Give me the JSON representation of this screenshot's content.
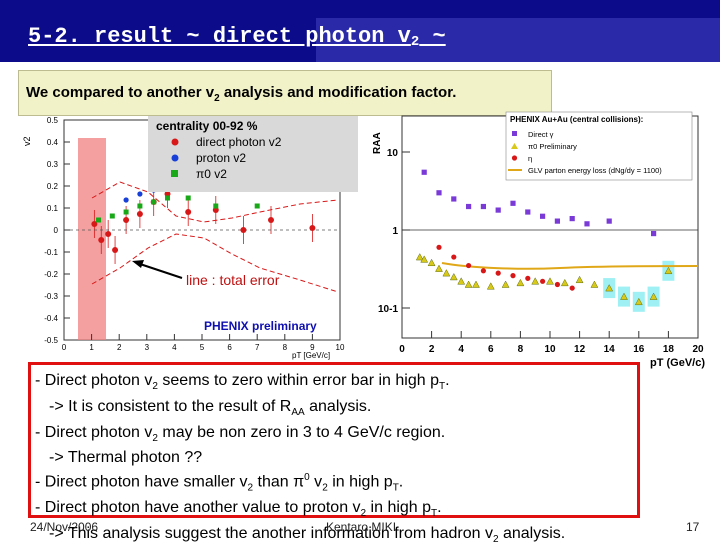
{
  "slide": {
    "title": "5-2. result ~ direct photon v",
    "title_sub": "2",
    "title_tail": " ~",
    "subtitle_pre": "We compared to another v",
    "subtitle_sub": "2",
    "subtitle_post": " analysis and modification factor.",
    "footer_date": "24/Nov/2006",
    "footer_author": "Kentaro MIKI",
    "page_number": "17"
  },
  "left_plot": {
    "ylabel": "v2",
    "xlabel": "pT [GeV/c]",
    "yticks": [
      "0.5",
      "0.4",
      "0.3",
      "0.2",
      "0.1",
      "0",
      "-0.1",
      "-0.2",
      "-0.3",
      "-0.4",
      "-0.5"
    ],
    "xticks": [
      "0",
      "1",
      "2",
      "3",
      "4",
      "5",
      "6",
      "7",
      "8",
      "9",
      "10"
    ],
    "legend_title": "centrality 00-92 %",
    "legend_items": [
      {
        "label": "direct photon v2",
        "color": "#d81818"
      },
      {
        "label": "proton v2",
        "color": "#1840d8"
      },
      {
        "label": "π0 v2",
        "color": "#18a818"
      }
    ],
    "annotation": "line : total error",
    "watermark": "PHENIX preliminary",
    "series": {
      "direct_photon": [
        [
          1.1,
          0.03
        ],
        [
          1.35,
          -0.05
        ],
        [
          1.6,
          -0.02
        ],
        [
          1.85,
          -0.1
        ],
        [
          2.25,
          0.05
        ],
        [
          2.75,
          0.08
        ],
        [
          3.25,
          0.14
        ],
        [
          3.75,
          0.18
        ],
        [
          4.5,
          0.09
        ],
        [
          5.5,
          0.1
        ],
        [
          6.5,
          0.0
        ],
        [
          7.5,
          0.05
        ],
        [
          9.0,
          0.01
        ]
      ],
      "proton": [
        [
          2.25,
          0.15
        ],
        [
          2.75,
          0.18
        ],
        [
          3.25,
          0.2
        ],
        [
          3.75,
          0.24
        ]
      ],
      "pi0": [
        [
          1.25,
          0.05
        ],
        [
          1.75,
          0.07
        ],
        [
          2.25,
          0.09
        ],
        [
          2.75,
          0.12
        ],
        [
          3.25,
          0.14
        ],
        [
          3.75,
          0.16
        ],
        [
          4.5,
          0.16
        ],
        [
          5.5,
          0.12
        ],
        [
          7.0,
          0.12
        ]
      ]
    }
  },
  "right_plot": {
    "ylabel": "RAA",
    "xlabel": "pT (GeV/c)",
    "yticks": [
      "10",
      "1",
      "10-1"
    ],
    "xticks": [
      "0",
      "2",
      "4",
      "6",
      "8",
      "10",
      "12",
      "14",
      "16",
      "18",
      "20"
    ],
    "legend_title": "PHENIX Au+Au (central collisions):",
    "legend_items": [
      {
        "label": "Direct γ",
        "color": "#7a3ad8"
      },
      {
        "label": "π0 Preliminary",
        "color": "#d8c818"
      },
      {
        "label": "η",
        "color": "#d81818"
      },
      {
        "label": "GLV parton energy loss (dNg/dy = 1100)",
        "color": "#e0a818"
      }
    ],
    "series": {
      "direct_gamma": [
        [
          1.5,
          5.5
        ],
        [
          2.5,
          3.0
        ],
        [
          3.5,
          2.5
        ],
        [
          4.5,
          2.0
        ],
        [
          5.5,
          2.0
        ],
        [
          6.5,
          1.8
        ],
        [
          7.5,
          2.2
        ],
        [
          8.5,
          1.7
        ],
        [
          9.5,
          1.5
        ],
        [
          10.5,
          1.3
        ],
        [
          11.5,
          1.4
        ],
        [
          12.5,
          1.2
        ],
        [
          14,
          1.3
        ],
        [
          17,
          0.9
        ]
      ],
      "pi0": [
        [
          1.2,
          0.45
        ],
        [
          1.5,
          0.42
        ],
        [
          2.0,
          0.38
        ],
        [
          2.5,
          0.32
        ],
        [
          3.0,
          0.28
        ],
        [
          3.5,
          0.25
        ],
        [
          4.0,
          0.22
        ],
        [
          4.5,
          0.2
        ],
        [
          5.0,
          0.2
        ],
        [
          6.0,
          0.19
        ],
        [
          7.0,
          0.2
        ],
        [
          8.0,
          0.21
        ],
        [
          9.0,
          0.22
        ],
        [
          10.0,
          0.22
        ],
        [
          11.0,
          0.21
        ],
        [
          12.0,
          0.23
        ],
        [
          13.0,
          0.2
        ],
        [
          14.0,
          0.18
        ],
        [
          15.0,
          0.14
        ],
        [
          16.0,
          0.12
        ],
        [
          17.0,
          0.14
        ],
        [
          18.0,
          0.3
        ]
      ],
      "eta": [
        [
          2.5,
          0.6
        ],
        [
          3.5,
          0.45
        ],
        [
          4.5,
          0.35
        ],
        [
          5.5,
          0.3
        ],
        [
          6.5,
          0.28
        ],
        [
          7.5,
          0.26
        ],
        [
          8.5,
          0.24
        ],
        [
          9.5,
          0.22
        ],
        [
          10.5,
          0.2
        ],
        [
          11.5,
          0.18
        ]
      ]
    }
  },
  "bullets": [
    {
      "parts": [
        "- Direct photon v",
        "2",
        " seems to zero within error bar in high p",
        "T",
        "."
      ]
    },
    {
      "parts": [
        "-> It is consistent to the result of R",
        "AA",
        " analysis."
      ]
    },
    {
      "parts": [
        "- Direct photon v",
        "2",
        " may be non zero in 3 to 4 GeV/c region."
      ]
    },
    {
      "parts": [
        "-> Thermal photon ??"
      ]
    },
    {
      "parts": [
        "- Direct photon have smaller v",
        "2",
        " than π",
        "0",
        " v",
        "2",
        " in high p",
        "T",
        "."
      ]
    },
    {
      "parts": [
        "- Direct photon have another value to proton v",
        "2",
        " in high p",
        "T",
        "."
      ]
    },
    {
      "parts": [
        "-> This analysis suggest the another information from hadron v",
        "2",
        " analysis."
      ]
    }
  ]
}
